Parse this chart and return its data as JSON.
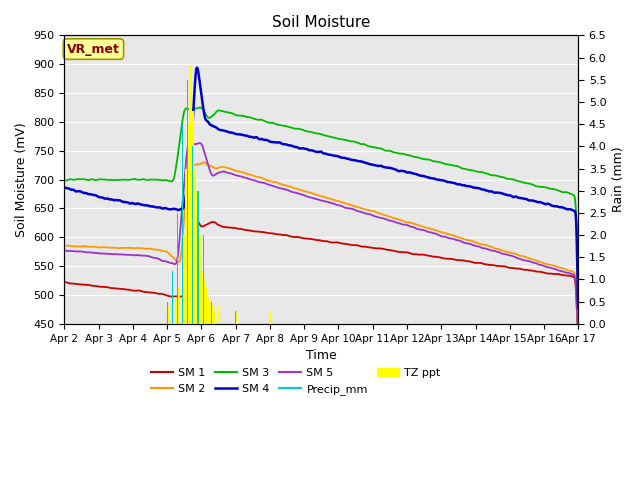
{
  "title": "Soil Moisture",
  "xlabel": "Time",
  "ylabel_left": "Soil Moisture (mV)",
  "ylabel_right": "Rain (mm)",
  "ylim_left": [
    450,
    950
  ],
  "ylim_right": [
    0.0,
    6.5
  ],
  "yticks_left": [
    450,
    500,
    550,
    600,
    650,
    700,
    750,
    800,
    850,
    900,
    950
  ],
  "yticks_right": [
    0.0,
    0.5,
    1.0,
    1.5,
    2.0,
    2.5,
    3.0,
    3.5,
    4.0,
    4.5,
    5.0,
    5.5,
    6.0,
    6.5
  ],
  "xtick_labels": [
    "Apr 2",
    "Apr 3",
    "Apr 4",
    "Apr 5",
    "Apr 6",
    "Apr 7",
    "Apr 8",
    "Apr 9",
    "Apr 10",
    "Apr 11",
    "Apr 12",
    "Apr 13",
    "Apr 14",
    "Apr 15",
    "Apr 16",
    "Apr 17"
  ],
  "bg_color": "#e8e8e8",
  "legend_box_color": "#ffff99",
  "legend_box_text": "VR_met",
  "legend_box_text_color": "#8b0000",
  "series": {
    "SM1": {
      "color": "#cc0000",
      "label": "SM 1"
    },
    "SM2": {
      "color": "#ff9900",
      "label": "SM 2"
    },
    "SM3": {
      "color": "#00bb00",
      "label": "SM 3"
    },
    "SM4": {
      "color": "#0000cc",
      "label": "SM 4"
    },
    "SM5": {
      "color": "#9933cc",
      "label": "SM 5"
    },
    "Precip_mm": {
      "color": "#00cccc",
      "label": "Precip_mm"
    },
    "TZ_ppt": {
      "color": "#ffff00",
      "label": "TZ ppt"
    }
  },
  "n_days": 15,
  "points_per_day": 96
}
